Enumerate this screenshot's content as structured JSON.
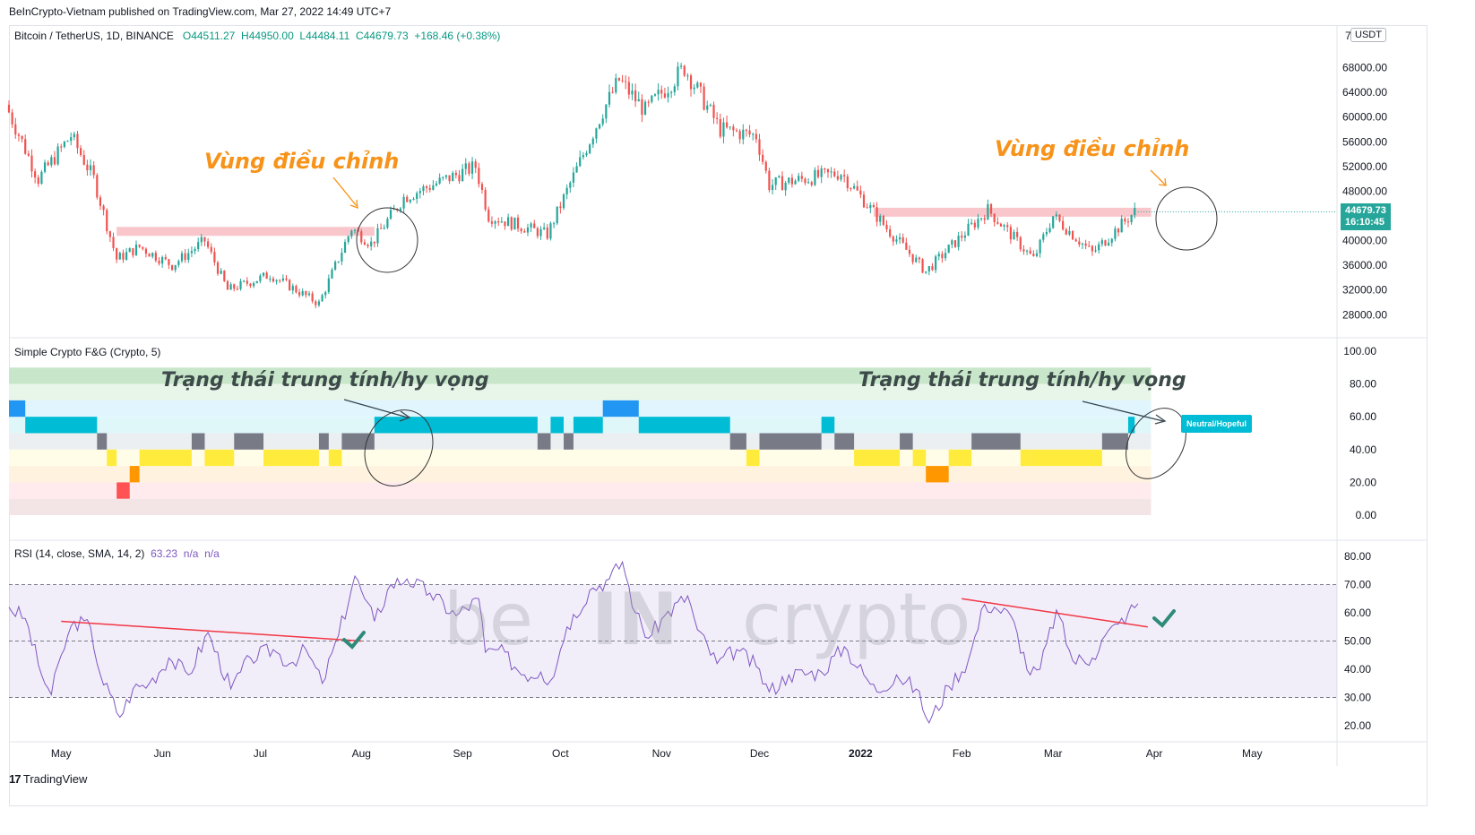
{
  "header": {
    "publisher": "BeInCrypto-Vietnam published on TradingView.com, Mar 27, 2022 14:49 UTC+7"
  },
  "main_pane": {
    "symbol": "Bitcoin / TetherUS, 1D, BINANCE",
    "ohlc": {
      "o": "O44511.27",
      "h": "H44950.00",
      "l": "L44484.11",
      "c": "C44679.73",
      "chg": "+168.46 (+0.38%)"
    },
    "currency": "USDT",
    "last_price": "44679.73",
    "countdown": "16:10:45"
  },
  "fg_pane": {
    "title": "Simple Crypto F&G (Crypto, 5)",
    "current_state": "Neutral/Hopeful"
  },
  "rsi_pane": {
    "title": "RSI (14, close, SMA, 14, 2)",
    "value": "63.23",
    "na1": "n/a",
    "na2": "n/a"
  },
  "annotations": {
    "correction_left": "Vùng điều chỉnh",
    "correction_right": "Vùng điều chỉnh",
    "state_left": "Trạng thái trung tính/hy vọng",
    "state_right": "Trạng thái trung tính/hy vọng"
  },
  "watermark": {
    "left": "be",
    "mid": "IN",
    "right": "crypto"
  },
  "footer": {
    "brand": "TradingView"
  },
  "colors": {
    "up": "#26a69a",
    "down": "#ef5350",
    "rsi": "#7e57c2",
    "resistance": "#f7c0c5",
    "annotation": "#f7931a"
  },
  "chart_data": [
    {
      "type": "candlestick",
      "title": "Bitcoin / TetherUS, 1D, BINANCE",
      "x_ticks": [
        "May",
        "Jun",
        "Jul",
        "Aug",
        "Sep",
        "Oct",
        "Nov",
        "Dec",
        "2022",
        "Feb",
        "Mar",
        "Apr",
        "May"
      ],
      "y_ticks": [
        "68000.00",
        "64000.00",
        "60000.00",
        "56000.00",
        "52000.00",
        "48000.00",
        "44000.00",
        "40000.00",
        "36000.00",
        "32000.00",
        "28000.00"
      ],
      "ylim": [
        25000,
        72000
      ],
      "close_path": [
        [
          "2021-04-15",
          62000
        ],
        [
          "2021-04-25",
          50000
        ],
        [
          "2021-05-05",
          57000
        ],
        [
          "2021-05-12",
          50000
        ],
        [
          "2021-05-19",
          37000
        ],
        [
          "2021-05-26",
          39000
        ],
        [
          "2021-06-05",
          36000
        ],
        [
          "2021-06-15",
          40000
        ],
        [
          "2021-06-22",
          32000
        ],
        [
          "2021-07-05",
          34500
        ],
        [
          "2021-07-20",
          29800
        ],
        [
          "2021-07-30",
          42000
        ],
        [
          "2021-08-05",
          39500
        ],
        [
          "2021-08-15",
          47000
        ],
        [
          "2021-09-06",
          52000
        ],
        [
          "2021-09-10",
          44000
        ],
        [
          "2021-09-28",
          41000
        ],
        [
          "2021-10-15",
          61000
        ],
        [
          "2021-10-20",
          66000
        ],
        [
          "2021-10-28",
          61000
        ],
        [
          "2021-11-09",
          68000
        ],
        [
          "2021-11-20",
          58000
        ],
        [
          "2021-12-01",
          57000
        ],
        [
          "2021-12-05",
          49000
        ],
        [
          "2021-12-27",
          51000
        ],
        [
          "2022-01-10",
          42000
        ],
        [
          "2022-01-22",
          35000
        ],
        [
          "2022-02-10",
          45000
        ],
        [
          "2022-02-24",
          37000
        ],
        [
          "2022-03-02",
          44000
        ],
        [
          "2022-03-14",
          38000
        ],
        [
          "2022-03-27",
          44679.73
        ]
      ],
      "resistance_zones": [
        {
          "x": [
            "2021-05-18",
            "2021-08-05"
          ],
          "y": 41500
        },
        {
          "x": [
            "2022-01-05",
            "2022-03-31"
          ],
          "y": 44600
        }
      ]
    },
    {
      "type": "heatmap",
      "title": "Simple Crypto F&G (Crypto, 5)",
      "y_ticks": [
        "100.00",
        "80.00",
        "60.00",
        "40.00",
        "20.00",
        "0.00"
      ],
      "ylim": [
        0,
        100
      ],
      "bands": [
        {
          "y": [
            80,
            90
          ],
          "color": "#c8e6c9"
        },
        {
          "y": [
            70,
            80
          ],
          "color": "#e8f5e9"
        },
        {
          "y": [
            60,
            70
          ],
          "color": "#e1f5fe"
        },
        {
          "y": [
            50,
            60
          ],
          "color": "#e0f7fa"
        },
        {
          "y": [
            40,
            50
          ],
          "color": "#eceff1"
        },
        {
          "y": [
            30,
            40
          ],
          "color": "#fffde7"
        },
        {
          "y": [
            20,
            30
          ],
          "color": "#fff3e0"
        },
        {
          "y": [
            10,
            20
          ],
          "color": "#ffebee"
        },
        {
          "y": [
            0,
            10
          ],
          "color": "#f3e5e5"
        }
      ],
      "states": [
        {
          "x": [
            "2021-04-15",
            "2021-04-20"
          ],
          "level": 65,
          "color": "#2196f3"
        },
        {
          "x": [
            "2021-04-20",
            "2021-05-12"
          ],
          "level": 55,
          "color": "#00bcd4"
        },
        {
          "x": [
            "2021-05-12",
            "2021-05-15"
          ],
          "level": 45,
          "color": "#787b86"
        },
        {
          "x": [
            "2021-05-15",
            "2021-05-18"
          ],
          "level": 35,
          "color": "#ffeb3b"
        },
        {
          "x": [
            "2021-05-18",
            "2021-05-22"
          ],
          "level": 15,
          "color": "#ff5252"
        },
        {
          "x": [
            "2021-05-22",
            "2021-05-25"
          ],
          "level": 25,
          "color": "#ff9800"
        },
        {
          "x": [
            "2021-05-25",
            "2021-06-10"
          ],
          "level": 35,
          "color": "#ffeb3b"
        },
        {
          "x": [
            "2021-06-10",
            "2021-06-14"
          ],
          "level": 45,
          "color": "#787b86"
        },
        {
          "x": [
            "2021-06-14",
            "2021-06-23"
          ],
          "level": 35,
          "color": "#ffeb3b"
        },
        {
          "x": [
            "2021-06-23",
            "2021-07-02"
          ],
          "level": 45,
          "color": "#787b86"
        },
        {
          "x": [
            "2021-07-02",
            "2021-07-19"
          ],
          "level": 35,
          "color": "#ffeb3b"
        },
        {
          "x": [
            "2021-07-19",
            "2021-07-22"
          ],
          "level": 45,
          "color": "#787b86"
        },
        {
          "x": [
            "2021-07-22",
            "2021-07-26"
          ],
          "level": 35,
          "color": "#ffeb3b"
        },
        {
          "x": [
            "2021-07-26",
            "2021-08-05"
          ],
          "level": 45,
          "color": "#787b86"
        },
        {
          "x": [
            "2021-08-05",
            "2021-09-24"
          ],
          "level": 55,
          "color": "#00bcd4"
        },
        {
          "x": [
            "2021-09-24",
            "2021-09-28"
          ],
          "level": 45,
          "color": "#787b86"
        },
        {
          "x": [
            "2021-09-28",
            "2021-10-02"
          ],
          "level": 55,
          "color": "#00bcd4"
        },
        {
          "x": [
            "2021-10-02",
            "2021-10-05"
          ],
          "level": 45,
          "color": "#787b86"
        },
        {
          "x": [
            "2021-10-05",
            "2021-10-14"
          ],
          "level": 55,
          "color": "#00bcd4"
        },
        {
          "x": [
            "2021-10-14",
            "2021-10-25"
          ],
          "level": 65,
          "color": "#2196f3"
        },
        {
          "x": [
            "2021-10-25",
            "2021-11-22"
          ],
          "level": 55,
          "color": "#00bcd4"
        },
        {
          "x": [
            "2021-11-22",
            "2021-11-27"
          ],
          "level": 45,
          "color": "#787b86"
        },
        {
          "x": [
            "2021-11-27",
            "2021-12-01"
          ],
          "level": 35,
          "color": "#ffeb3b"
        },
        {
          "x": [
            "2021-12-01",
            "2021-12-20"
          ],
          "level": 45,
          "color": "#787b86"
        },
        {
          "x": [
            "2021-12-20",
            "2021-12-24"
          ],
          "level": 55,
          "color": "#00bcd4"
        },
        {
          "x": [
            "2021-12-24",
            "2021-12-30"
          ],
          "level": 45,
          "color": "#787b86"
        },
        {
          "x": [
            "2021-12-30",
            "2022-01-13"
          ],
          "level": 35,
          "color": "#ffeb3b"
        },
        {
          "x": [
            "2022-01-13",
            "2022-01-17"
          ],
          "level": 45,
          "color": "#787b86"
        },
        {
          "x": [
            "2022-01-17",
            "2022-01-21"
          ],
          "level": 35,
          "color": "#ffeb3b"
        },
        {
          "x": [
            "2022-01-21",
            "2022-01-28"
          ],
          "level": 25,
          "color": "#ff9800"
        },
        {
          "x": [
            "2022-01-28",
            "2022-02-04"
          ],
          "level": 35,
          "color": "#ffeb3b"
        },
        {
          "x": [
            "2022-02-04",
            "2022-02-19"
          ],
          "level": 45,
          "color": "#787b86"
        },
        {
          "x": [
            "2022-02-19",
            "2022-02-22"
          ],
          "level": 35,
          "color": "#ffeb3b"
        },
        {
          "x": [
            "2022-02-22",
            "2022-03-16"
          ],
          "level": 35,
          "color": "#ffeb3b"
        },
        {
          "x": [
            "2022-03-16",
            "2022-03-24"
          ],
          "level": 45,
          "color": "#787b86"
        },
        {
          "x": [
            "2022-03-24",
            "2022-03-26"
          ],
          "level": 55,
          "color": "#00bcd4"
        }
      ]
    },
    {
      "type": "line",
      "title": "RSI (14, close, SMA, 14, 2)",
      "y_ticks": [
        "80.00",
        "70.00",
        "60.00",
        "50.00",
        "40.00",
        "30.00",
        "20.00"
      ],
      "ylim": [
        17,
        83
      ],
      "levels": [
        70,
        50,
        30
      ],
      "series": [
        {
          "name": "RSI",
          "points": [
            [
              "2021-04-15",
              62
            ],
            [
              "2021-04-20",
              58
            ],
            [
              "2021-04-25",
              38
            ],
            [
              "2021-04-28",
              31
            ],
            [
              "2021-05-01",
              45
            ],
            [
              "2021-05-05",
              57
            ],
            [
              "2021-05-10",
              55
            ],
            [
              "2021-05-13",
              38
            ],
            [
              "2021-05-19",
              23
            ],
            [
              "2021-05-23",
              33
            ],
            [
              "2021-05-28",
              35
            ],
            [
              "2021-06-03",
              44
            ],
            [
              "2021-06-09",
              38
            ],
            [
              "2021-06-15",
              53
            ],
            [
              "2021-06-22",
              33
            ],
            [
              "2021-06-28",
              44
            ],
            [
              "2021-07-05",
              47
            ],
            [
              "2021-07-10",
              42
            ],
            [
              "2021-07-15",
              47
            ],
            [
              "2021-07-20",
              35
            ],
            [
              "2021-07-25",
              52
            ],
            [
              "2021-07-30",
              73
            ],
            [
              "2021-08-02",
              65
            ],
            [
              "2021-08-05",
              57
            ],
            [
              "2021-08-10",
              70
            ],
            [
              "2021-08-15",
              72
            ],
            [
              "2021-08-22",
              67
            ],
            [
              "2021-08-30",
              59
            ],
            [
              "2021-09-06",
              65
            ],
            [
              "2021-09-08",
              46
            ],
            [
              "2021-09-12",
              47
            ],
            [
              "2021-09-20",
              38
            ],
            [
              "2021-09-25",
              39
            ],
            [
              "2021-09-28",
              36
            ],
            [
              "2021-10-03",
              55
            ],
            [
              "2021-10-10",
              68
            ],
            [
              "2021-10-16",
              72
            ],
            [
              "2021-10-20",
              78
            ],
            [
              "2021-10-24",
              60
            ],
            [
              "2021-10-28",
              51
            ],
            [
              "2021-11-02",
              59
            ],
            [
              "2021-11-09",
              66
            ],
            [
              "2021-11-12",
              54
            ],
            [
              "2021-11-18",
              42
            ],
            [
              "2021-11-24",
              47
            ],
            [
              "2021-11-30",
              41
            ],
            [
              "2021-12-04",
              32
            ],
            [
              "2021-12-10",
              38
            ],
            [
              "2021-12-20",
              39
            ],
            [
              "2021-12-27",
              48
            ],
            [
              "2022-01-02",
              38
            ],
            [
              "2022-01-06",
              32
            ],
            [
              "2022-01-12",
              38
            ],
            [
              "2022-01-18",
              33
            ],
            [
              "2022-01-22",
              21
            ],
            [
              "2022-01-28",
              34
            ],
            [
              "2022-02-03",
              43
            ],
            [
              "2022-02-08",
              63
            ],
            [
              "2022-02-11",
              62
            ],
            [
              "2022-02-16",
              59
            ],
            [
              "2022-02-22",
              38
            ],
            [
              "2022-02-25",
              40
            ],
            [
              "2022-03-02",
              61
            ],
            [
              "2022-03-07",
              43
            ],
            [
              "2022-03-13",
              44
            ],
            [
              "2022-03-17",
              52
            ],
            [
              "2022-03-21",
              56
            ],
            [
              "2022-03-24",
              60
            ],
            [
              "2022-03-27",
              63.23
            ]
          ]
        }
      ],
      "trendlines": [
        {
          "x": [
            "2021-05-01",
            "2021-08-01"
          ],
          "y": [
            57,
            50
          ]
        },
        {
          "x": [
            "2022-02-01",
            "2022-03-30"
          ],
          "y": [
            65,
            55
          ]
        }
      ]
    }
  ]
}
